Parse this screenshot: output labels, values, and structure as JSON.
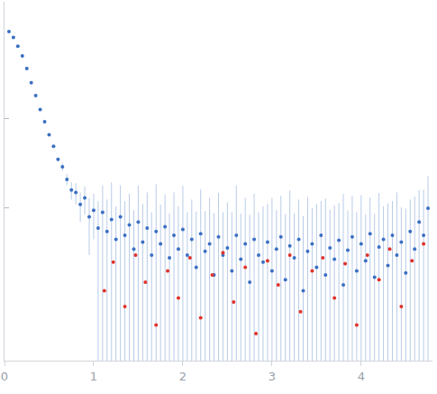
{
  "chart_data": {
    "type": "scatter",
    "log": "y",
    "grid": false,
    "tick_labels": "x",
    "xlim": [
      0,
      4.8
    ],
    "xticks": [
      0,
      1,
      2,
      3,
      4
    ],
    "ylim": [
      0.02,
      200
    ],
    "yticks": [
      1,
      10
    ],
    "series": [
      {
        "color": "#3b6fc2",
        "marker": "circle",
        "x": [
          0.05,
          0.1,
          0.15,
          0.2,
          0.25,
          0.3,
          0.35,
          0.4,
          0.45,
          0.5,
          0.55,
          0.6,
          0.65,
          0.7,
          0.75,
          0.8,
          0.85,
          0.9,
          0.95,
          1.0,
          1.05,
          1.1,
          1.15,
          1.2,
          1.25,
          1.3,
          1.35,
          1.4,
          1.45,
          1.5,
          1.55,
          1.6,
          1.65,
          1.7,
          1.75,
          1.8,
          1.85,
          1.9,
          1.95,
          2.0,
          2.05,
          2.1,
          2.15,
          2.2,
          2.25,
          2.3,
          2.35,
          2.4,
          2.45,
          2.5,
          2.55,
          2.6,
          2.65,
          2.7,
          2.75,
          2.8,
          2.85,
          2.9,
          2.95,
          3.0,
          3.05,
          3.1,
          3.15,
          3.2,
          3.25,
          3.3,
          3.35,
          3.4,
          3.45,
          3.5,
          3.55,
          3.6,
          3.65,
          3.7,
          3.75,
          3.8,
          3.85,
          3.9,
          3.95,
          4.0,
          4.05,
          4.1,
          4.15,
          4.2,
          4.25,
          4.3,
          4.35,
          4.4,
          4.45,
          4.5,
          4.55,
          4.6,
          4.65,
          4.7,
          4.75
        ],
        "values": [
          93,
          80,
          64,
          50,
          36,
          25,
          18,
          12.6,
          9.2,
          6.6,
          4.9,
          3.5,
          2.9,
          2.1,
          1.6,
          1.5,
          1.1,
          1.3,
          0.8,
          0.95,
          0.6,
          0.9,
          0.55,
          0.75,
          0.45,
          0.8,
          0.5,
          0.65,
          0.35,
          0.7,
          0.42,
          0.6,
          0.3,
          0.55,
          0.4,
          0.62,
          0.28,
          0.5,
          0.35,
          0.58,
          0.3,
          0.45,
          0.22,
          0.52,
          0.33,
          0.4,
          0.18,
          0.48,
          0.3,
          0.36,
          0.2,
          0.5,
          0.27,
          0.4,
          0.15,
          0.45,
          0.3,
          0.25,
          0.42,
          0.2,
          0.35,
          0.48,
          0.16,
          0.38,
          0.28,
          0.45,
          0.12,
          0.33,
          0.4,
          0.22,
          0.5,
          0.18,
          0.36,
          0.27,
          0.44,
          0.14,
          0.34,
          0.48,
          0.2,
          0.4,
          0.26,
          0.52,
          0.17,
          0.37,
          0.45,
          0.23,
          0.5,
          0.3,
          0.42,
          0.19,
          0.55,
          0.35,
          0.7,
          0.5,
          1.0
        ],
        "errors": [
          1,
          1,
          0.8,
          0.6,
          0.4,
          0.3,
          0.2,
          0.15,
          0.12,
          0.1,
          0.1,
          0.1,
          0.3,
          0.3,
          0.35,
          0.4,
          0.4,
          0.45,
          0.5,
          0.5,
          0.6,
          0.9,
          0.7,
          1.2,
          0.6,
          1.0,
          0.7,
          0.8,
          0.6,
          1.1,
          0.7,
          0.9,
          0.6,
          1.3,
          0.7,
          0.8,
          0.6,
          1.0,
          0.7,
          1.2,
          0.6,
          0.8,
          0.7,
          1.1,
          0.6,
          0.9,
          0.7,
          1.0,
          0.6,
          0.8,
          0.7,
          1.3,
          0.6,
          0.9,
          0.7,
          1.0,
          0.6,
          0.8,
          0.7,
          1.1,
          0.6,
          0.9,
          0.7,
          1.2,
          0.6,
          0.8,
          0.7,
          1.0,
          0.6,
          0.9,
          0.7,
          1.1,
          0.6,
          0.8,
          0.7,
          1.3,
          0.6,
          0.9,
          0.7,
          1.0,
          0.6,
          0.8,
          0.7,
          1.1,
          0.6,
          0.9,
          0.7,
          1.2,
          0.6,
          0.8,
          0.7,
          1.0,
          0.9,
          1.1,
          1.3
        ]
      },
      {
        "color": "#e0332b",
        "marker": "circle",
        "x": [
          1.12,
          1.22,
          1.35,
          1.47,
          1.58,
          1.7,
          1.83,
          1.95,
          2.08,
          2.2,
          2.33,
          2.45,
          2.57,
          2.7,
          2.82,
          2.95,
          3.07,
          3.2,
          3.32,
          3.45,
          3.57,
          3.7,
          3.82,
          3.95,
          4.07,
          4.2,
          4.32,
          4.45,
          4.57,
          4.7
        ],
        "values": [
          0.12,
          0.25,
          0.08,
          0.3,
          0.15,
          0.05,
          0.2,
          0.1,
          0.28,
          0.06,
          0.18,
          0.32,
          0.09,
          0.22,
          0.04,
          0.26,
          0.14,
          0.3,
          0.07,
          0.2,
          0.28,
          0.1,
          0.24,
          0.05,
          0.3,
          0.16,
          0.35,
          0.08,
          0.26,
          0.4
        ]
      }
    ]
  }
}
